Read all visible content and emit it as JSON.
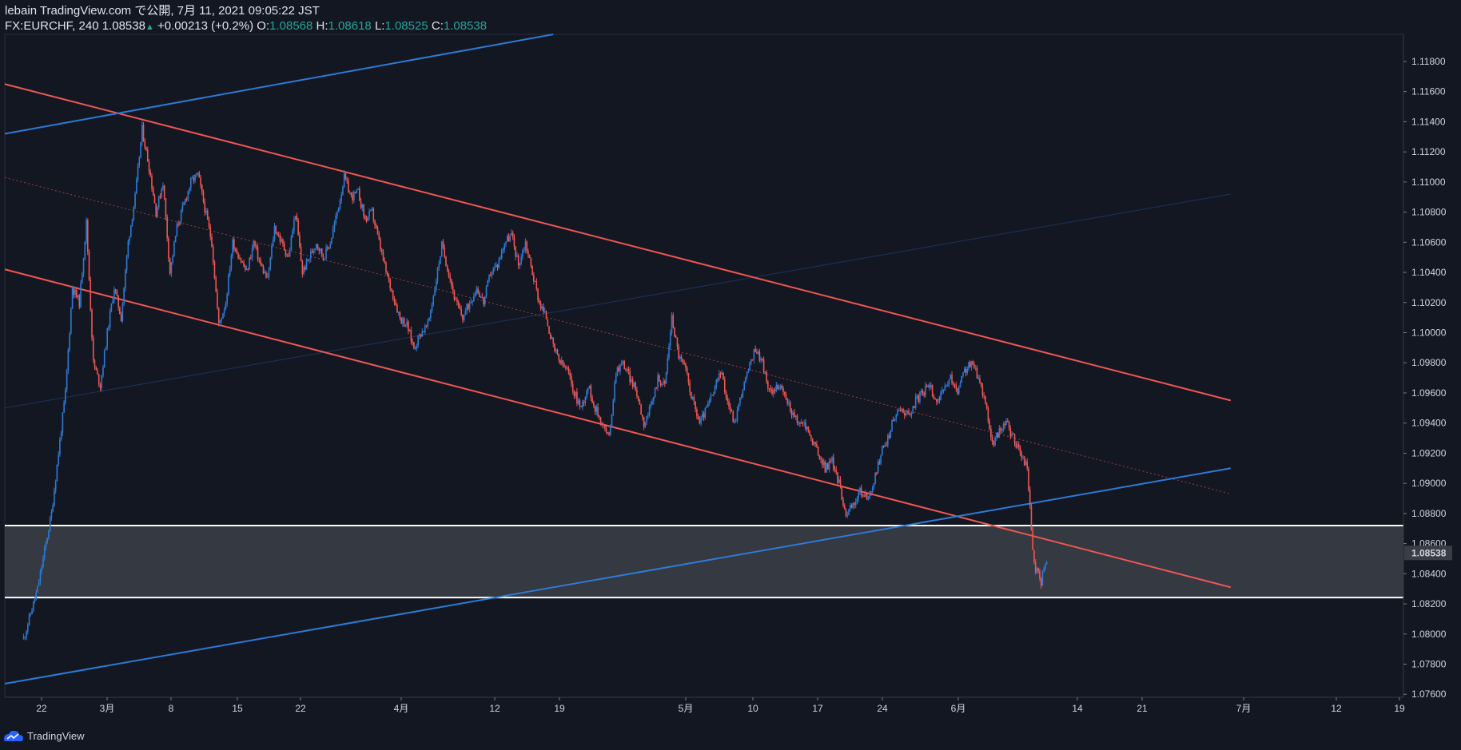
{
  "header": {
    "published": "lebain TradingView.com で公開, 7月 11, 2021 09:05:22 JST",
    "symbol": "FX:EURCHF, 240",
    "last": "1.08538",
    "change_arrow": "▲",
    "change": "+0.00213 (+0.2%)",
    "o_label": "O:",
    "o_value": "1.08568",
    "h_label": "H:",
    "h_value": "1.08618",
    "l_label": "L:",
    "l_value": "1.08525",
    "c_label": "C:",
    "c_value": "1.08538"
  },
  "footer": {
    "brand": "TradingView",
    "logo_icon": "tradingview-logo-icon"
  },
  "colors": {
    "background": "#131722",
    "up": "#2e7ad6",
    "down": "#f05652",
    "channel_red": "#f05652",
    "trend_blue": "#2e7ad6",
    "zone_fill": "#3a3d45",
    "zone_line": "#ffffff",
    "axis_text": "#d1d4dc",
    "price_tag": "#3a3d45"
  },
  "chart_data": {
    "type": "candlestick",
    "symbol": "FX:EURCHF",
    "timeframe": "240",
    "ylim": [
      1.0758,
      1.1198
    ],
    "y_ticks": [
      "1.07600",
      "1.07800",
      "1.08000",
      "1.08200",
      "1.08400",
      "1.08600",
      "1.08800",
      "1.09000",
      "1.09200",
      "1.09400",
      "1.09600",
      "1.09800",
      "1.10000",
      "1.10200",
      "1.10400",
      "1.10600",
      "1.10800",
      "1.11000",
      "1.11200",
      "1.11400",
      "1.11600",
      "1.11800"
    ],
    "x_ticks": [
      "22",
      "3月",
      "8",
      "15",
      "22",
      "4月",
      "12",
      "19",
      "5月",
      "10",
      "17",
      "24",
      "6月",
      "14",
      "21",
      "7月",
      "12",
      "19"
    ],
    "current_price": "1.08538",
    "close_path": [
      {
        "day": 0,
        "price": 1.0797
      },
      {
        "day": 2,
        "price": 1.083
      },
      {
        "day": 4,
        "price": 1.088
      },
      {
        "day": 6,
        "price": 1.096
      },
      {
        "day": 7,
        "price": 1.103
      },
      {
        "day": 8,
        "price": 1.102
      },
      {
        "day": 9,
        "price": 1.1073
      },
      {
        "day": 10,
        "price": 1.098
      },
      {
        "day": 11,
        "price": 1.0965
      },
      {
        "day": 12,
        "price": 1.1
      },
      {
        "day": 13,
        "price": 1.103
      },
      {
        "day": 14,
        "price": 1.101
      },
      {
        "day": 15,
        "price": 1.106
      },
      {
        "day": 16,
        "price": 1.109
      },
      {
        "day": 17,
        "price": 1.1135
      },
      {
        "day": 18,
        "price": 1.111
      },
      {
        "day": 19,
        "price": 1.108
      },
      {
        "day": 20,
        "price": 1.11
      },
      {
        "day": 21,
        "price": 1.104
      },
      {
        "day": 22,
        "price": 1.107
      },
      {
        "day": 23,
        "price": 1.1085
      },
      {
        "day": 24,
        "price": 1.11
      },
      {
        "day": 25,
        "price": 1.1105
      },
      {
        "day": 27,
        "price": 1.106
      },
      {
        "day": 28,
        "price": 1.1005
      },
      {
        "day": 29,
        "price": 1.102
      },
      {
        "day": 30,
        "price": 1.106
      },
      {
        "day": 32,
        "price": 1.104
      },
      {
        "day": 33,
        "price": 1.106
      },
      {
        "day": 34,
        "price": 1.1045
      },
      {
        "day": 35,
        "price": 1.1035
      },
      {
        "day": 36,
        "price": 1.107
      },
      {
        "day": 38,
        "price": 1.105
      },
      {
        "day": 39,
        "price": 1.108
      },
      {
        "day": 40,
        "price": 1.104
      },
      {
        "day": 42,
        "price": 1.106
      },
      {
        "day": 43,
        "price": 1.105
      },
      {
        "day": 44,
        "price": 1.106
      },
      {
        "day": 45,
        "price": 1.108
      },
      {
        "day": 46,
        "price": 1.1103
      },
      {
        "day": 47,
        "price": 1.109
      },
      {
        "day": 48,
        "price": 1.1093
      },
      {
        "day": 49,
        "price": 1.1075
      },
      {
        "day": 50,
        "price": 1.108
      },
      {
        "day": 51,
        "price": 1.106
      },
      {
        "day": 52,
        "price": 1.104
      },
      {
        "day": 53,
        "price": 1.1025
      },
      {
        "day": 54,
        "price": 1.101
      },
      {
        "day": 55,
        "price": 1.1005
      },
      {
        "day": 56,
        "price": 1.099
      },
      {
        "day": 57,
        "price": 1.1
      },
      {
        "day": 58,
        "price": 1.1005
      },
      {
        "day": 59,
        "price": 1.103
      },
      {
        "day": 60,
        "price": 1.1058
      },
      {
        "day": 61,
        "price": 1.104
      },
      {
        "day": 62,
        "price": 1.102
      },
      {
        "day": 63,
        "price": 1.101
      },
      {
        "day": 64,
        "price": 1.102
      },
      {
        "day": 65,
        "price": 1.103
      },
      {
        "day": 66,
        "price": 1.102
      },
      {
        "day": 67,
        "price": 1.104
      },
      {
        "day": 68,
        "price": 1.1045
      },
      {
        "day": 69,
        "price": 1.106
      },
      {
        "day": 70,
        "price": 1.1065
      },
      {
        "day": 71,
        "price": 1.1045
      },
      {
        "day": 72,
        "price": 1.106
      },
      {
        "day": 73,
        "price": 1.104
      },
      {
        "day": 74,
        "price": 1.102
      },
      {
        "day": 75,
        "price": 1.101
      },
      {
        "day": 76,
        "price": 1.099
      },
      {
        "day": 77,
        "price": 1.098
      },
      {
        "day": 78,
        "price": 1.0975
      },
      {
        "day": 79,
        "price": 1.096
      },
      {
        "day": 80,
        "price": 1.095
      },
      {
        "day": 81,
        "price": 1.0965
      },
      {
        "day": 82,
        "price": 1.095
      },
      {
        "day": 83,
        "price": 1.094
      },
      {
        "day": 84,
        "price": 1.093
      },
      {
        "day": 85,
        "price": 1.0975
      },
      {
        "day": 86,
        "price": 1.098
      },
      {
        "day": 87,
        "price": 1.097
      },
      {
        "day": 88,
        "price": 1.096
      },
      {
        "day": 89,
        "price": 1.094
      },
      {
        "day": 90,
        "price": 1.095
      },
      {
        "day": 91,
        "price": 1.097
      },
      {
        "day": 92,
        "price": 1.0965
      },
      {
        "day": 93,
        "price": 1.101
      },
      {
        "day": 94,
        "price": 1.0985
      },
      {
        "day": 95,
        "price": 1.0975
      },
      {
        "day": 96,
        "price": 1.0955
      },
      {
        "day": 97,
        "price": 1.094
      },
      {
        "day": 98,
        "price": 1.095
      },
      {
        "day": 99,
        "price": 1.096
      },
      {
        "day": 100,
        "price": 1.0975
      },
      {
        "day": 101,
        "price": 1.0955
      },
      {
        "day": 102,
        "price": 1.094
      },
      {
        "day": 103,
        "price": 1.096
      },
      {
        "day": 104,
        "price": 1.0975
      },
      {
        "day": 105,
        "price": 1.099
      },
      {
        "day": 106,
        "price": 1.098
      },
      {
        "day": 107,
        "price": 1.096
      },
      {
        "day": 108,
        "price": 1.0965
      },
      {
        "day": 109,
        "price": 1.096
      },
      {
        "day": 110,
        "price": 1.095
      },
      {
        "day": 111,
        "price": 1.094
      },
      {
        "day": 112,
        "price": 1.094
      },
      {
        "day": 113,
        "price": 1.093
      },
      {
        "day": 114,
        "price": 1.092
      },
      {
        "day": 115,
        "price": 1.091
      },
      {
        "day": 116,
        "price": 1.0915
      },
      {
        "day": 117,
        "price": 1.09
      },
      {
        "day": 118,
        "price": 1.088
      },
      {
        "day": 119,
        "price": 1.0885
      },
      {
        "day": 120,
        "price": 1.0895
      },
      {
        "day": 121,
        "price": 1.089
      },
      {
        "day": 122,
        "price": 1.09
      },
      {
        "day": 123,
        "price": 1.092
      },
      {
        "day": 124,
        "price": 1.093
      },
      {
        "day": 125,
        "price": 1.0945
      },
      {
        "day": 126,
        "price": 1.095
      },
      {
        "day": 127,
        "price": 1.0945
      },
      {
        "day": 128,
        "price": 1.0955
      },
      {
        "day": 129,
        "price": 1.096
      },
      {
        "day": 130,
        "price": 1.0965
      },
      {
        "day": 131,
        "price": 1.0955
      },
      {
        "day": 132,
        "price": 1.096
      },
      {
        "day": 133,
        "price": 1.097
      },
      {
        "day": 134,
        "price": 1.096
      },
      {
        "day": 135,
        "price": 1.0975
      },
      {
        "day": 136,
        "price": 1.098
      },
      {
        "day": 137,
        "price": 1.097
      },
      {
        "day": 138,
        "price": 1.0955
      },
      {
        "day": 139,
        "price": 1.0925
      },
      {
        "day": 140,
        "price": 1.0935
      },
      {
        "day": 141,
        "price": 1.094
      },
      {
        "day": 142,
        "price": 1.093
      },
      {
        "day": 143,
        "price": 1.092
      },
      {
        "day": 144,
        "price": 1.091
      },
      {
        "day": 145,
        "price": 1.0845
      },
      {
        "day": 146,
        "price": 1.0835
      },
      {
        "day": 147,
        "price": 1.0854
      }
    ],
    "drawings": [
      {
        "name": "channel-upper-line",
        "color": "red",
        "points": [
          [
            -2.7,
            1.1165
          ],
          [
            173.2,
            1.0955
          ]
        ]
      },
      {
        "name": "channel-lower-line",
        "color": "red",
        "points": [
          [
            -2.7,
            1.1042
          ],
          [
            173.2,
            1.0831
          ]
        ]
      },
      {
        "name": "channel-midline-dotted",
        "color": "red",
        "style": "dotted",
        "points": [
          [
            -2.7,
            1.1103
          ],
          [
            173.2,
            1.0893
          ]
        ]
      },
      {
        "name": "blue-trendline-top",
        "color": "blue",
        "points": [
          [
            -2.7,
            1.1132
          ],
          [
            76.0,
            1.1198
          ]
        ]
      },
      {
        "name": "blue-trendline-lower",
        "color": "blue",
        "points": [
          [
            -2.7,
            1.0767
          ],
          [
            173.2,
            1.091
          ]
        ]
      },
      {
        "name": "blue-faint-line",
        "color": "blue",
        "style": "faint",
        "points": [
          [
            -2.7,
            1.095
          ],
          [
            173.2,
            1.1092
          ]
        ]
      }
    ],
    "zone": {
      "upper": 1.0872,
      "lower": 1.08242
    },
    "grid": false,
    "legend": "top-left"
  }
}
